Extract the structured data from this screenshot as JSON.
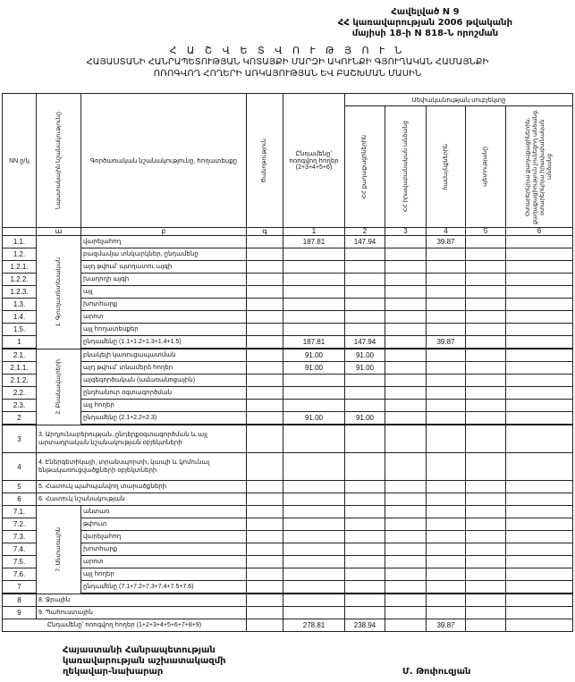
{
  "annex": {
    "line1": "Հավելված N 9",
    "line2": "ՀՀ կառավարության 2006 թվականի",
    "line3": "մայիսի 18-ի N 818-Ն որոշման"
  },
  "title": {
    "line1": "Հ Ա Շ Վ Ե Տ Վ Ո Ւ Թ Յ Ո Ւ Ն",
    "line2": "ՀԱՅԱՍՏԱՆԻ ՀԱՆՐԱՊԵՏՈՒԹՅԱՆ ԿՈՏԱՅՔԻ ՄԱՐԶԻ ԱԿՈՒՆՔԻ ԳՅՈՒՂԱԿԱՆ ՀԱՄԱՅՆՔԻ",
    "line3": "ՈՌՈԳՎՈՂ ՀՈՂԵՐԻ ԱՌԿԱՅՈՒԹՅԱՆ ԵՎ ԲԱՇԽՄԱՆ ՄԱՍԻՆ"
  },
  "table": {
    "headers": {
      "nn": "NN ը/կ",
      "purpose": "Նպատակային նշանակությունը",
      "function": "Գործառական նշանակությունը, հողատեսքը",
      "note": "Ծանոթություն",
      "total": "Ընդամենը՝ ոռոգվող հողեր (2+3+4+5+6)",
      "owners": "Սեփականության սուբյեկտը",
      "col2": "ՀՀ քաղաքացիներին",
      "col3": "ՀՀ իրավաբանական անձանց",
      "col4": "համայնքներին",
      "col5": "պետությանը",
      "col6": "Օտարերկրյա քաղաքացիներին, քաղաքացիություն չունեցող անձանց, օտարերկրյա իրավաբանական անձանց"
    },
    "letters": [
      "",
      "ա",
      "բ",
      "գ",
      "1",
      "2",
      "3",
      "4",
      "5",
      "6"
    ],
    "groups": [
      {
        "label": "1. Գյուղատնտեսական",
        "rows": [
          {
            "nn": "1.1.",
            "desc": "վարելահող",
            "values": [
              "",
              "187.81",
              "147.94",
              "",
              "39.87",
              "",
              ""
            ]
          },
          {
            "nn": "1.2.",
            "desc": "բազմամյա տնկարկներ, ընդամենը",
            "values": [
              "",
              "",
              "",
              "",
              "",
              "",
              ""
            ]
          },
          {
            "nn": "1.2.1.",
            "desc": "այդ թվում՝     պտղատու այգի",
            "values": [
              "",
              "",
              "",
              "",
              "",
              "",
              ""
            ]
          },
          {
            "nn": "1.2.2.",
            "desc": "                         խաղողի այգի",
            "values": [
              "",
              "",
              "",
              "",
              "",
              "",
              ""
            ]
          },
          {
            "nn": "1.2.3.",
            "desc": "այլ",
            "values": [
              "",
              "",
              "",
              "",
              "",
              "",
              ""
            ]
          },
          {
            "nn": "1.3.",
            "desc": "խոտհարք",
            "values": [
              "",
              "",
              "",
              "",
              "",
              "",
              ""
            ]
          },
          {
            "nn": "1.4.",
            "desc": "արոտ",
            "values": [
              "",
              "",
              "",
              "",
              "",
              "",
              ""
            ]
          },
          {
            "nn": "1.5.",
            "desc": "այլ հողատեսքեր",
            "values": [
              "",
              "",
              "",
              "",
              "",
              "",
              ""
            ]
          },
          {
            "nn": "1",
            "desc": "ընդամենը (1.1+1.2+1.3+1.4+1.5)",
            "values": [
              "",
              "187.81",
              "147.94",
              "",
              "39.87",
              "",
              ""
            ],
            "sum": true
          }
        ]
      },
      {
        "label": "2. Բնակավայրերի",
        "rows": [
          {
            "nn": "2.1.",
            "desc": "բնակելի կառուցապատման",
            "values": [
              "",
              "91.00",
              "91.00",
              "",
              "",
              "",
              ""
            ]
          },
          {
            "nn": "2.1.1.",
            "desc": "այդ թվում՝ տնամերձ հողեր",
            "values": [
              "",
              "91.00",
              "91.00",
              "",
              "",
              "",
              ""
            ]
          },
          {
            "nn": "2.1.2.",
            "desc": "այգեգործական (ամառանոցային)",
            "values": [
              "",
              "",
              "",
              "",
              "",
              "",
              ""
            ]
          },
          {
            "nn": "2.2.",
            "desc": "ընդհանուր օգտագործման",
            "values": [
              "",
              "",
              "",
              "",
              "",
              "",
              ""
            ]
          },
          {
            "nn": "2.3.",
            "desc": "այլ հողեր",
            "values": [
              "",
              "",
              "",
              "",
              "",
              "",
              ""
            ]
          },
          {
            "nn": "2",
            "desc": "ընդամենը (2.1+2.2+2.3)",
            "values": [
              "",
              "91.00",
              "91.00",
              "",
              "",
              "",
              ""
            ],
            "sum": true
          }
        ]
      }
    ],
    "single_rows_a": [
      {
        "nn": "3",
        "desc": "3. Արդյունաբերության, ընդերքօգտագործման և այլ արտադրական նշանակության օբյեկտների",
        "values": [
          "",
          "",
          "",
          "",
          "",
          "",
          ""
        ],
        "tall": true
      },
      {
        "nn": "4",
        "desc": "4. Էներգետիկայի, տրանսպորտի, կապի և կոմունալ ենթակառուցվածքների օբյեկտների",
        "values": [
          "",
          "",
          "",
          "",
          "",
          "",
          ""
        ],
        "tall": true
      },
      {
        "nn": "5",
        "desc": "5. Հատուկ պահպանվող տարածքների",
        "values": [
          "",
          "",
          "",
          "",
          "",
          "",
          ""
        ]
      },
      {
        "nn": "6",
        "desc": "6. Հատուկ նշանակության",
        "values": [
          "",
          "",
          "",
          "",
          "",
          "",
          ""
        ]
      }
    ],
    "forest_group": {
      "label": "7. Անտառային",
      "rows": [
        {
          "nn": "7.1.",
          "desc": "անտառ",
          "values": [
            "",
            "",
            "",
            "",
            "",
            "",
            ""
          ]
        },
        {
          "nn": "7.2.",
          "desc": "թփուտ",
          "values": [
            "",
            "",
            "",
            "",
            "",
            "",
            ""
          ]
        },
        {
          "nn": "7.3.",
          "desc": "վարելահող",
          "values": [
            "",
            "",
            "",
            "",
            "",
            "",
            ""
          ]
        },
        {
          "nn": "7.4.",
          "desc": "խոտհարք",
          "values": [
            "",
            "",
            "",
            "",
            "",
            "",
            ""
          ]
        },
        {
          "nn": "7.5.",
          "desc": "արոտ",
          "values": [
            "",
            "",
            "",
            "",
            "",
            "",
            ""
          ]
        },
        {
          "nn": "7.6.",
          "desc": "այլ հողեր",
          "values": [
            "",
            "",
            "",
            "",
            "",
            "",
            ""
          ]
        },
        {
          "nn": "7",
          "desc": "ընդամենը (7.1+7.2+7.3+7.4+7.5+7.6)",
          "values": [
            "",
            "",
            "",
            "",
            "",
            "",
            ""
          ],
          "sum": true
        }
      ]
    },
    "single_rows_b": [
      {
        "nn": "8",
        "desc": "8. Ջրային",
        "values": [
          "",
          "",
          "",
          "",
          "",
          "",
          ""
        ]
      },
      {
        "nn": "9",
        "desc": "9. Պահուստային",
        "values": [
          "",
          "",
          "",
          "",
          "",
          "",
          ""
        ]
      }
    ],
    "total_row": {
      "desc": "Ընդամենը՝ ոռոգվող հողեր (1+2+3+4+5+6+7+8+9)",
      "values": [
        "",
        "278.81",
        "238.94",
        "",
        "39.87",
        "",
        ""
      ]
    }
  },
  "footer": {
    "line1": "Հայաստանի Հանրապետության",
    "line2": "կառավարության աշխատակազմի",
    "line3": "ղեկավար-նախարար",
    "signatory": "Մ. Թոփուզյան"
  }
}
